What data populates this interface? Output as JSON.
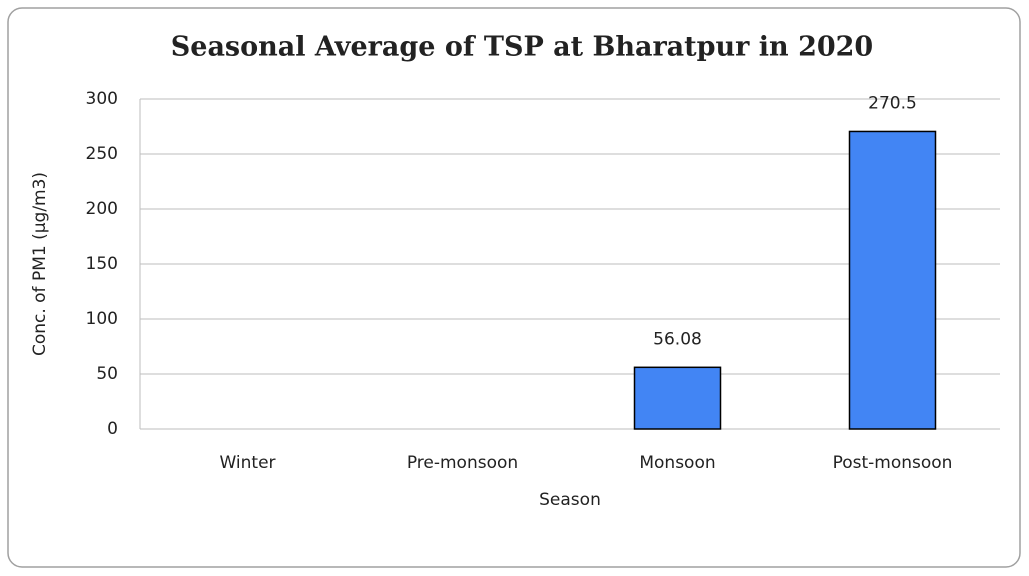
{
  "chart_data": {
    "type": "bar",
    "title": "Seasonal Average of  TSP at Bharatpur in 2020",
    "x_label": "Season",
    "y_label": "Conc. of PM1 (µg/m3)",
    "categories": [
      "Winter",
      "Pre-monsoon",
      "Monsoon",
      "Post-monsoon"
    ],
    "values": [
      null,
      null,
      56.08,
      270.5
    ],
    "color": "#4285f4",
    "ylim": [
      0,
      300
    ],
    "yticks": [
      0,
      50,
      100,
      150,
      200,
      250,
      300
    ],
    "grid": true
  }
}
